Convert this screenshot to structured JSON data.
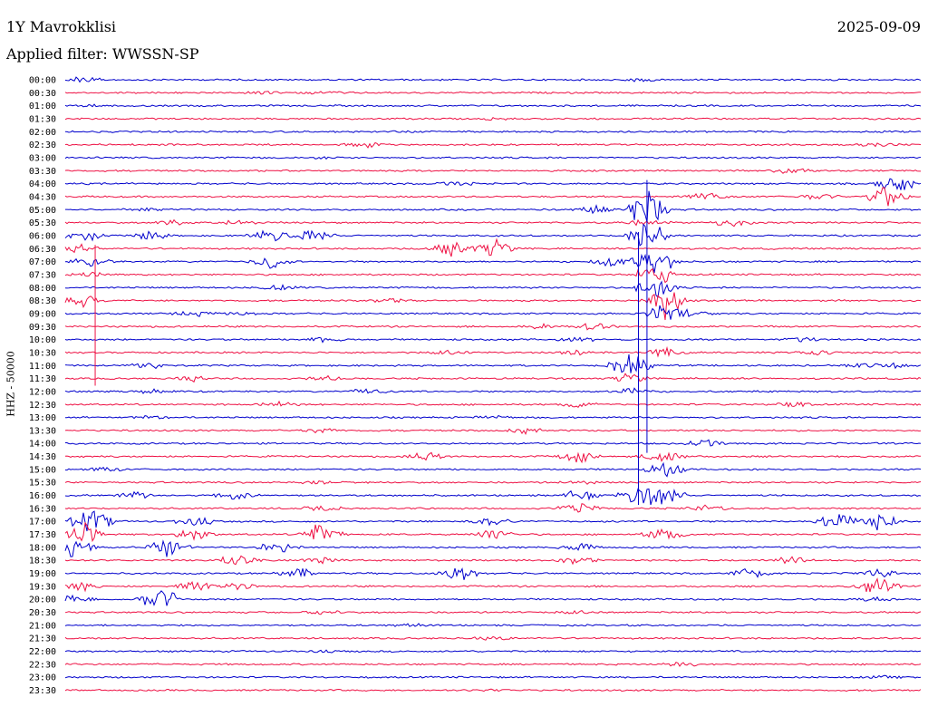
{
  "header": {
    "station": "1Y Mavrokklisi",
    "date": "2025-09-09",
    "filter": "Applied filter: WWSSN-SP"
  },
  "chart_data": {
    "type": "line",
    "title": "1Y Mavrokklisi",
    "ylabel": "HHZ - 50000",
    "colors": [
      "#0000cc",
      "#ee1144"
    ],
    "rows": [
      {
        "label": "00:00",
        "events": [
          {
            "t": 0.02,
            "a": 4
          },
          {
            "t": 0.67,
            "a": 2
          }
        ]
      },
      {
        "label": "00:30",
        "events": [
          {
            "t": 0.23,
            "a": 2
          },
          {
            "t": 0.3,
            "a": 1.5
          }
        ]
      },
      {
        "label": "01:00",
        "events": [
          {
            "t": 0.03,
            "a": 1
          }
        ]
      },
      {
        "label": "01:30",
        "events": [
          {
            "t": 0.5,
            "a": 1
          }
        ]
      },
      {
        "label": "02:00",
        "events": [
          {
            "t": 0.4,
            "a": 1
          }
        ]
      },
      {
        "label": "02:30",
        "events": [
          {
            "t": 0.35,
            "a": 3
          },
          {
            "t": 0.95,
            "a": 2
          }
        ]
      },
      {
        "label": "03:00",
        "events": [
          {
            "t": 0.3,
            "a": 1
          }
        ]
      },
      {
        "label": "03:30",
        "events": [
          {
            "t": 0.85,
            "a": 4
          }
        ]
      },
      {
        "label": "04:00",
        "events": [
          {
            "t": 0.46,
            "a": 3
          },
          {
            "t": 0.97,
            "a": 14
          }
        ]
      },
      {
        "label": "04:30",
        "events": [
          {
            "t": 0.75,
            "a": 6
          },
          {
            "t": 0.88,
            "a": 4
          },
          {
            "t": 0.96,
            "a": 16
          }
        ]
      },
      {
        "label": "05:00",
        "events": [
          {
            "t": 0.09,
            "a": 2
          },
          {
            "t": 0.62,
            "a": 5
          },
          {
            "t": 0.68,
            "a": 30
          }
        ]
      },
      {
        "label": "05:30",
        "events": [
          {
            "t": 0.13,
            "a": 4
          },
          {
            "t": 0.2,
            "a": 3
          },
          {
            "t": 0.68,
            "a": 6
          },
          {
            "t": 0.78,
            "a": 5
          }
        ]
      },
      {
        "label": "06:00",
        "events": [
          {
            "t": 0.02,
            "a": 8
          },
          {
            "t": 0.1,
            "a": 6
          },
          {
            "t": 0.24,
            "a": 8
          },
          {
            "t": 0.29,
            "a": 8
          },
          {
            "t": 0.68,
            "a": 20
          }
        ]
      },
      {
        "label": "06:30",
        "events": [
          {
            "t": 0.02,
            "a": 5
          },
          {
            "t": 0.45,
            "a": 10
          },
          {
            "t": 0.5,
            "a": 12
          }
        ]
      },
      {
        "label": "07:00",
        "events": [
          {
            "t": 0.03,
            "a": 6
          },
          {
            "t": 0.24,
            "a": 10
          },
          {
            "t": 0.64,
            "a": 8
          },
          {
            "t": 0.69,
            "a": 20
          }
        ]
      },
      {
        "label": "07:30",
        "events": [
          {
            "t": 0.03,
            "a": 3
          },
          {
            "t": 0.69,
            "a": 14
          }
        ]
      },
      {
        "label": "08:00",
        "events": [
          {
            "t": 0.25,
            "a": 3
          },
          {
            "t": 0.69,
            "a": 18
          }
        ]
      },
      {
        "label": "08:30",
        "events": [
          {
            "t": 0.02,
            "a": 8
          },
          {
            "t": 0.38,
            "a": 3
          },
          {
            "t": 0.7,
            "a": 22
          }
        ]
      },
      {
        "label": "09:00",
        "events": [
          {
            "t": 0.15,
            "a": 3
          },
          {
            "t": 0.2,
            "a": 2
          },
          {
            "t": 0.7,
            "a": 12
          },
          {
            "t": 0.73,
            "a": 4
          }
        ]
      },
      {
        "label": "09:30",
        "events": [
          {
            "t": 0.56,
            "a": 4
          },
          {
            "t": 0.62,
            "a": 5
          }
        ]
      },
      {
        "label": "10:00",
        "events": [
          {
            "t": 0.3,
            "a": 3
          },
          {
            "t": 0.6,
            "a": 3
          },
          {
            "t": 0.86,
            "a": 3
          }
        ]
      },
      {
        "label": "10:30",
        "events": [
          {
            "t": 0.45,
            "a": 3
          },
          {
            "t": 0.6,
            "a": 4
          },
          {
            "t": 0.7,
            "a": 6
          },
          {
            "t": 0.88,
            "a": 3
          }
        ]
      },
      {
        "label": "11:00",
        "events": [
          {
            "t": 0.1,
            "a": 4
          },
          {
            "t": 0.66,
            "a": 16
          },
          {
            "t": 0.93,
            "a": 3
          },
          {
            "t": 0.97,
            "a": 3
          }
        ]
      },
      {
        "label": "11:30",
        "events": [
          {
            "t": 0.15,
            "a": 3
          },
          {
            "t": 0.3,
            "a": 3
          },
          {
            "t": 0.66,
            "a": 6
          }
        ]
      },
      {
        "label": "12:00",
        "events": [
          {
            "t": 0.1,
            "a": 3
          },
          {
            "t": 0.35,
            "a": 3
          },
          {
            "t": 0.66,
            "a": 4
          }
        ]
      },
      {
        "label": "12:30",
        "events": [
          {
            "t": 0.25,
            "a": 3
          },
          {
            "t": 0.6,
            "a": 4
          },
          {
            "t": 0.85,
            "a": 3
          }
        ]
      },
      {
        "label": "13:00",
        "events": [
          {
            "t": 0.1,
            "a": 2
          },
          {
            "t": 0.5,
            "a": 2
          }
        ]
      },
      {
        "label": "13:30",
        "events": [
          {
            "t": 0.3,
            "a": 3
          },
          {
            "t": 0.54,
            "a": 4
          }
        ]
      },
      {
        "label": "14:00",
        "events": [
          {
            "t": 0.75,
            "a": 5
          }
        ]
      },
      {
        "label": "14:30",
        "events": [
          {
            "t": 0.42,
            "a": 5
          },
          {
            "t": 0.6,
            "a": 10
          },
          {
            "t": 0.7,
            "a": 10
          }
        ]
      },
      {
        "label": "15:00",
        "events": [
          {
            "t": 0.05,
            "a": 3
          },
          {
            "t": 0.7,
            "a": 10
          }
        ]
      },
      {
        "label": "15:30",
        "events": [
          {
            "t": 0.3,
            "a": 2
          },
          {
            "t": 0.6,
            "a": 2
          }
        ]
      },
      {
        "label": "16:00",
        "events": [
          {
            "t": 0.08,
            "a": 4
          },
          {
            "t": 0.2,
            "a": 5
          },
          {
            "t": 0.6,
            "a": 6
          },
          {
            "t": 0.67,
            "a": 12
          },
          {
            "t": 0.7,
            "a": 14
          }
        ]
      },
      {
        "label": "16:30",
        "events": [
          {
            "t": 0.3,
            "a": 3
          },
          {
            "t": 0.6,
            "a": 7
          },
          {
            "t": 0.75,
            "a": 4
          }
        ]
      },
      {
        "label": "17:00",
        "events": [
          {
            "t": 0.03,
            "a": 18
          },
          {
            "t": 0.15,
            "a": 6
          },
          {
            "t": 0.5,
            "a": 6
          },
          {
            "t": 0.9,
            "a": 12
          },
          {
            "t": 0.95,
            "a": 12
          }
        ]
      },
      {
        "label": "17:30",
        "events": [
          {
            "t": 0.02,
            "a": 14
          },
          {
            "t": 0.15,
            "a": 8
          },
          {
            "t": 0.3,
            "a": 16
          },
          {
            "t": 0.5,
            "a": 8
          },
          {
            "t": 0.7,
            "a": 10
          }
        ]
      },
      {
        "label": "18:00",
        "events": [
          {
            "t": 0.01,
            "a": 12
          },
          {
            "t": 0.12,
            "a": 12
          },
          {
            "t": 0.25,
            "a": 8
          },
          {
            "t": 0.6,
            "a": 6
          }
        ]
      },
      {
        "label": "18:30",
        "events": [
          {
            "t": 0.2,
            "a": 8
          },
          {
            "t": 0.3,
            "a": 6
          },
          {
            "t": 0.6,
            "a": 5
          },
          {
            "t": 0.85,
            "a": 6
          }
        ]
      },
      {
        "label": "19:00",
        "events": [
          {
            "t": 0.27,
            "a": 7
          },
          {
            "t": 0.46,
            "a": 10
          },
          {
            "t": 0.8,
            "a": 8
          },
          {
            "t": 0.95,
            "a": 6
          }
        ]
      },
      {
        "label": "19:30",
        "events": [
          {
            "t": 0.02,
            "a": 6
          },
          {
            "t": 0.15,
            "a": 5
          },
          {
            "t": 0.2,
            "a": 5
          },
          {
            "t": 0.95,
            "a": 14
          }
        ]
      },
      {
        "label": "20:00",
        "events": [
          {
            "t": 0.01,
            "a": 5
          },
          {
            "t": 0.11,
            "a": 16
          },
          {
            "t": 0.95,
            "a": 3
          }
        ]
      },
      {
        "label": "20:30",
        "events": [
          {
            "t": 0.3,
            "a": 2
          },
          {
            "t": 0.6,
            "a": 2
          }
        ]
      },
      {
        "label": "21:00",
        "events": [
          {
            "t": 0.4,
            "a": 2
          }
        ]
      },
      {
        "label": "21:30",
        "events": [
          {
            "t": 0.5,
            "a": 2
          }
        ]
      },
      {
        "label": "22:00",
        "events": [
          {
            "t": 0.3,
            "a": 1
          }
        ]
      },
      {
        "label": "22:30",
        "events": [
          {
            "t": 0.72,
            "a": 3
          }
        ]
      },
      {
        "label": "23:00",
        "events": [
          {
            "t": 0.95,
            "a": 1.5
          }
        ]
      },
      {
        "label": "23:30",
        "events": [
          {
            "t": 0.5,
            "a": 1
          }
        ]
      }
    ],
    "spikes": [
      {
        "row": "04:00",
        "t": 0.68,
        "amp": 110
      },
      {
        "row": "06:00",
        "t": 0.67,
        "amp": 110
      },
      {
        "row": "06:30",
        "t": 0.035,
        "amp": 56
      }
    ]
  }
}
